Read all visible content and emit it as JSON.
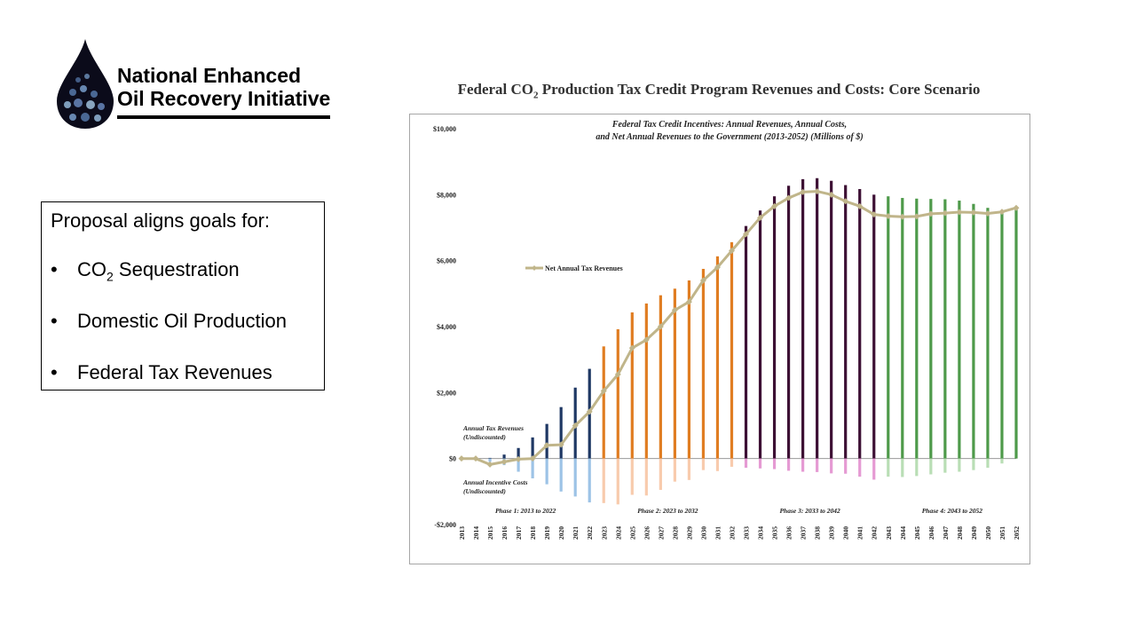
{
  "logo": {
    "line1": "National Enhanced",
    "line2": "Oil Recovery Initiative"
  },
  "goals": {
    "intro": "Proposal aligns goals for:",
    "bullet_symbol": "•",
    "items": [
      {
        "pre": "CO",
        "sub": "2",
        "post": " Sequestration"
      },
      {
        "pre": "Domestic Oil Production",
        "sub": "",
        "post": ""
      },
      {
        "pre": "Federal Tax Revenues",
        "sub": "",
        "post": ""
      }
    ]
  },
  "title": {
    "pre": "Federal CO",
    "sub": "2",
    "post": " Production Tax Credit Program Revenues and Costs: Core Scenario"
  },
  "chart_data": {
    "type": "bar",
    "title_line1": "Federal Tax Credit Incentives: Annual Revenues, Annual Costs,",
    "title_line2": "and Net Annual Revenues to the Government (2013-2052) (Millions of $)",
    "categories": [
      "2013",
      "2014",
      "2015",
      "2016",
      "2017",
      "2018",
      "2019",
      "2020",
      "2021",
      "2022",
      "2023",
      "2024",
      "2025",
      "2026",
      "2027",
      "2028",
      "2029",
      "2030",
      "2031",
      "2032",
      "2033",
      "2034",
      "2035",
      "2036",
      "2037",
      "2038",
      "2039",
      "2040",
      "2041",
      "2042",
      "2043",
      "2044",
      "2045",
      "2046",
      "2047",
      "2048",
      "2049",
      "2050",
      "2051",
      "2052"
    ],
    "ylim": [
      -2000,
      10000
    ],
    "y_ticks": [
      {
        "value": 10000,
        "label": "$10,000"
      },
      {
        "value": 8000,
        "label": "$8,000"
      },
      {
        "value": 6000,
        "label": "$6,000"
      },
      {
        "value": 4000,
        "label": "$4,000"
      },
      {
        "value": 2000,
        "label": "$2,000"
      },
      {
        "value": 0,
        "label": "$0"
      },
      {
        "value": -2000,
        "label": "-$2,000"
      }
    ],
    "series": [
      {
        "name": "Annual Tax Revenues",
        "values": [
          0,
          0,
          20,
          120,
          320,
          640,
          1050,
          1560,
          2150,
          2720,
          3400,
          3920,
          4430,
          4700,
          4950,
          5150,
          5400,
          5750,
          6130,
          6560,
          7050,
          7520,
          7950,
          8270,
          8470,
          8500,
          8420,
          8290,
          8170,
          8000,
          7950,
          7900,
          7880,
          7870,
          7860,
          7820,
          7720,
          7600,
          7500,
          7600
        ]
      },
      {
        "name": "Annual Incentive Costs",
        "values": [
          0,
          0,
          -100,
          -200,
          -400,
          -600,
          -780,
          -1000,
          -1150,
          -1330,
          -1350,
          -1390,
          -1100,
          -1120,
          -950,
          -700,
          -650,
          -350,
          -380,
          -250,
          -280,
          -300,
          -320,
          -370,
          -400,
          -410,
          -450,
          -460,
          -550,
          -640,
          -550,
          -560,
          -530,
          -480,
          -430,
          -400,
          -350,
          -280,
          -150,
          0
        ]
      },
      {
        "name": "Net Annual Tax Revenues",
        "values": [
          0,
          0,
          -180,
          -100,
          -20,
          0,
          400,
          420,
          1000,
          1420,
          2050,
          2550,
          3350,
          3600,
          4000,
          4500,
          4750,
          5400,
          5800,
          6300,
          6800,
          7300,
          7650,
          7900,
          8080,
          8100,
          8000,
          7800,
          7650,
          7400,
          7350,
          7330,
          7340,
          7420,
          7440,
          7470,
          7460,
          7430,
          7480,
          7600
        ]
      }
    ],
    "legend": {
      "label": "Net Annual Tax Revenues",
      "placement": "upper-left"
    },
    "annotations": [
      {
        "line1": "Annual Tax Revenues",
        "line2": "(Undiscounted)"
      },
      {
        "line1": "Annual Incentive Costs",
        "line2": "(Undiscounted)"
      }
    ],
    "phases": [
      {
        "label": "Phase 1: 2013 to 2022",
        "color": "#1f3864",
        "neg_color": "#9dc3e6"
      },
      {
        "label": "Phase 2: 2023 to 2032",
        "color": "#e07d22",
        "neg_color": "#f8cbad"
      },
      {
        "label": "Phase 3: 2033 to 2042",
        "color": "#3d1034",
        "neg_color": "#e59ad3"
      },
      {
        "label": "Phase 4: 2043 to 2052",
        "color": "#4e9a4a",
        "neg_color": "#b9deb5"
      }
    ],
    "net_line_color": "#c0b58a"
  }
}
